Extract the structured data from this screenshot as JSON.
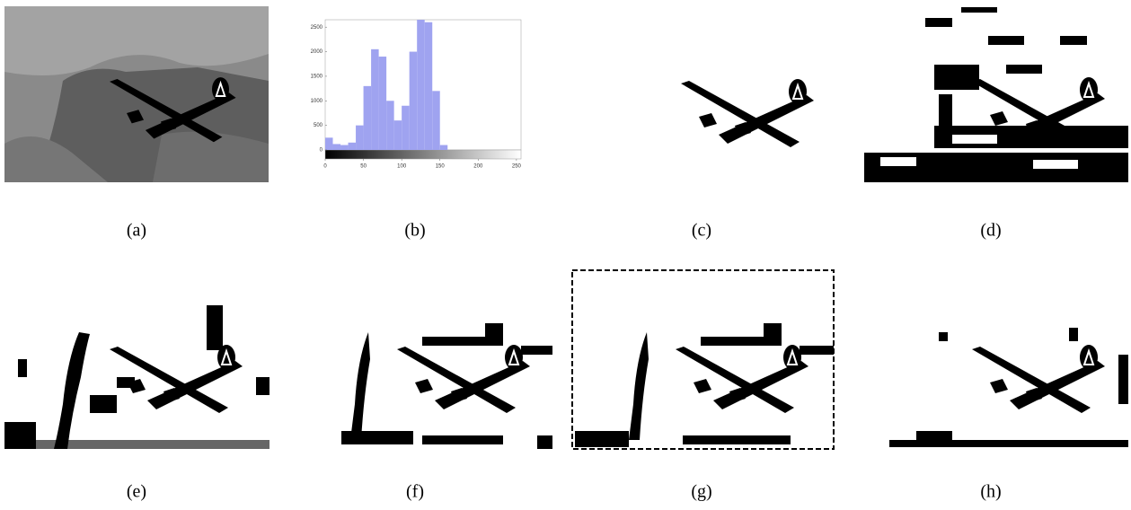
{
  "figure": {
    "panels": [
      {
        "caption": "(a)"
      },
      {
        "caption": "(b)"
      },
      {
        "caption": "(c)"
      },
      {
        "caption": "(d)"
      },
      {
        "caption": "(e)"
      },
      {
        "caption": "(f)"
      },
      {
        "caption": "(g)"
      },
      {
        "caption": "(h)"
      }
    ]
  },
  "chart_data": {
    "type": "histogram",
    "color": "#9fa3f0",
    "bins": [
      0,
      10,
      20,
      30,
      40,
      50,
      60,
      70,
      80,
      90,
      100,
      110,
      120,
      130,
      140,
      150,
      160
    ],
    "values": [
      250,
      120,
      100,
      150,
      500,
      1300,
      2050,
      1900,
      1000,
      600,
      900,
      2000,
      2650,
      2600,
      1200,
      100
    ],
    "xlim": [
      0,
      256
    ],
    "xticks": [
      0,
      50,
      100,
      150,
      200,
      250
    ],
    "ylim": [
      0,
      2650
    ],
    "yticks": [
      0,
      500,
      1000,
      1500,
      2000,
      2500
    ]
  }
}
